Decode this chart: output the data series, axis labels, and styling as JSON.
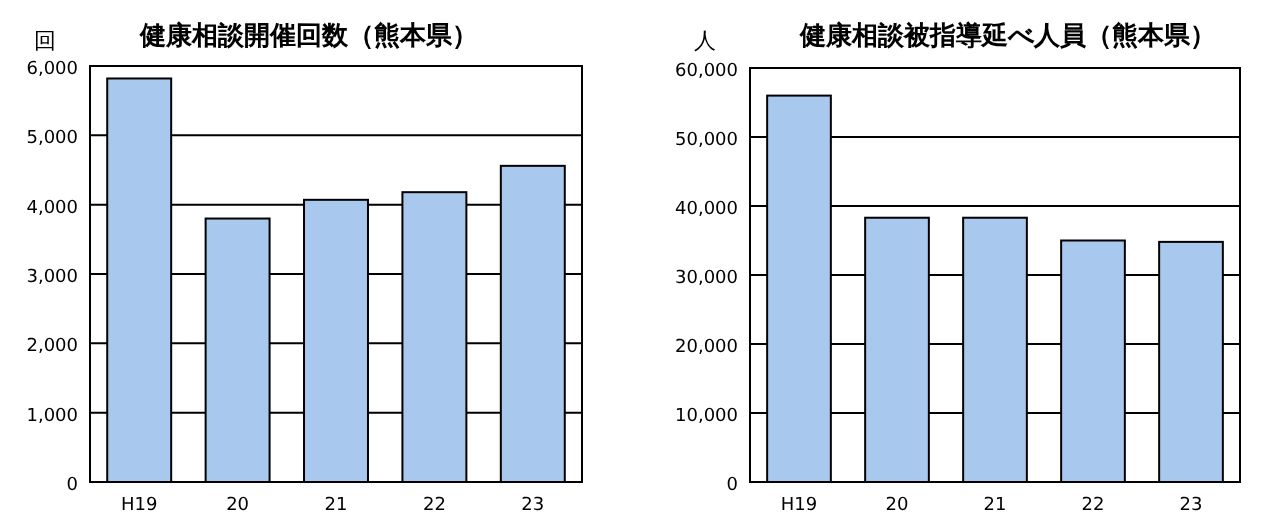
{
  "chart_data": [
    {
      "type": "bar",
      "title": "健康相談開催回数（熊本県）",
      "ylabel": "回",
      "categories": [
        "H19",
        "20",
        "21",
        "22",
        "23"
      ],
      "values": [
        5820,
        3800,
        4070,
        4180,
        4560
      ],
      "color": "#a8c8ee",
      "ylim": [
        0,
        6000
      ],
      "yticks": [
        {
          "value": 0,
          "label": "0"
        },
        {
          "value": 1000,
          "label": "1,000"
        },
        {
          "value": 2000,
          "label": "2,000"
        },
        {
          "value": 3000,
          "label": "3,000"
        },
        {
          "value": 4000,
          "label": "4,000"
        },
        {
          "value": 5000,
          "label": "5,000"
        },
        {
          "value": 6000,
          "label": "6,000"
        }
      ],
      "grid": "y"
    },
    {
      "type": "bar",
      "title": "健康相談被指導延べ人員（熊本県）",
      "ylabel": "人",
      "categories": [
        "H19",
        "20",
        "21",
        "22",
        "23"
      ],
      "values": [
        56000,
        38300,
        38300,
        35000,
        34800
      ],
      "color": "#a8c8ee",
      "ylim": [
        0,
        60000
      ],
      "yticks": [
        {
          "value": 0,
          "label": "0"
        },
        {
          "value": 10000,
          "label": "10,000"
        },
        {
          "value": 20000,
          "label": "20,000"
        },
        {
          "value": 30000,
          "label": "30,000"
        },
        {
          "value": 40000,
          "label": "40,000"
        },
        {
          "value": 50000,
          "label": "50,000"
        },
        {
          "value": 60000,
          "label": "60,000"
        }
      ],
      "grid": "y"
    }
  ]
}
